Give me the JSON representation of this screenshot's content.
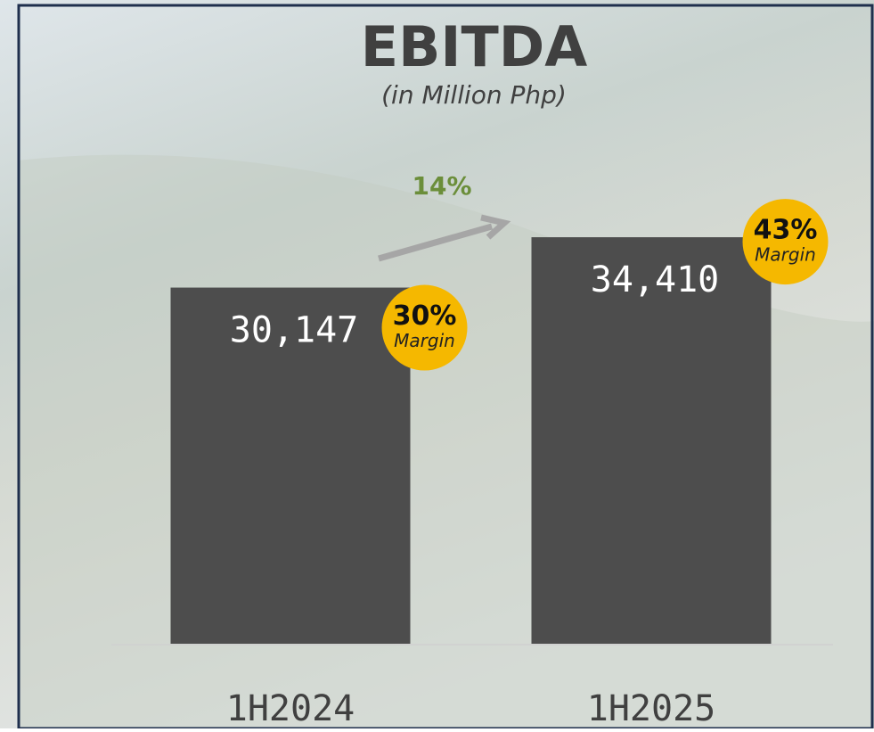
{
  "chart_data": {
    "type": "bar",
    "title": "EBITDA",
    "subtitle": "(in Million Php)",
    "categories": [
      "1H2024",
      "1H2025"
    ],
    "values": [
      30147,
      34410
    ],
    "value_labels": [
      "30,147",
      "34,410"
    ],
    "color": "#4d4d4d",
    "ylim": [
      0,
      40000
    ],
    "margin": {
      "name": "Margin",
      "values": [
        30,
        43
      ],
      "value_labels": [
        "30%",
        "43%"
      ],
      "color": "#f5b800"
    },
    "growth": {
      "value": 14,
      "label": "14%",
      "color": "#6b8e3a"
    }
  }
}
